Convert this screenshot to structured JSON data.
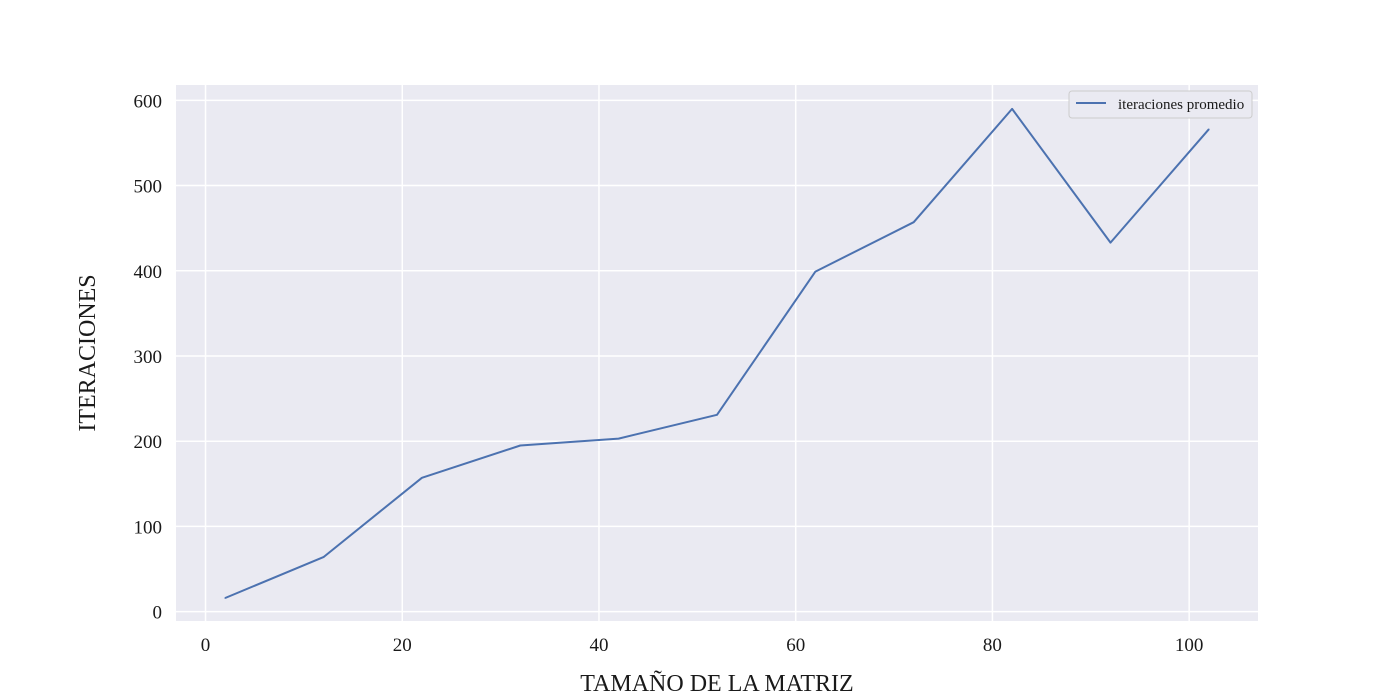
{
  "chart_data": {
    "type": "line",
    "xlabel": "TAMAÑO DE LA MATRIZ",
    "ylabel": "ITERACIONES",
    "xlim": [
      -3,
      107
    ],
    "ylim": [
      -11,
      618
    ],
    "xticks": [
      0,
      20,
      40,
      60,
      80,
      100
    ],
    "yticks": [
      0,
      100,
      200,
      300,
      400,
      500,
      600
    ],
    "grid": true,
    "legend_position": "top-right",
    "series": [
      {
        "name": "iteraciones promedio",
        "color": "#4c72b0",
        "x": [
          2,
          12,
          22,
          32,
          42,
          52,
          62,
          72,
          82,
          92,
          102
        ],
        "y": [
          16,
          64,
          157,
          195,
          203,
          231,
          399,
          457,
          590,
          433,
          566
        ]
      }
    ]
  },
  "colors": {
    "plot_background": "#eaeaf2",
    "grid": "#ffffff"
  }
}
